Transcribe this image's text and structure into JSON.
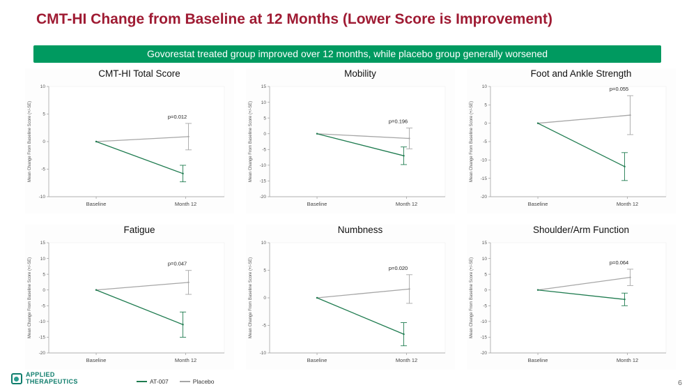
{
  "slide": {
    "title": "CMT-HI Change from Baseline at 12 Months  (Lower Score is Improvement)",
    "banner": "Govorestat treated group improved over 12 months, while placebo group generally worsened",
    "page_number": "6"
  },
  "logo": {
    "line1": "APPLIED",
    "line2": "THERAPEUTICS"
  },
  "colors": {
    "title_red": "#9f1b33",
    "banner_green": "#009a60",
    "at007_green": "#1e7b4f",
    "placebo_gray": "#a6a6a6",
    "logo_teal": "#0f7d6c"
  },
  "legend": {
    "position": "bottom-left",
    "items": [
      {
        "label": "AT-007",
        "color_key": "at007_green"
      },
      {
        "label": "Placebo",
        "color_key": "placebo_gray"
      }
    ]
  },
  "chart_data": [
    {
      "type": "line",
      "title": "CMT-HI Total Score",
      "p_value": "p=0.012",
      "x_categories": [
        "Baseline",
        "Month 12"
      ],
      "ylabel": "Mean Change From Baseline Score (+/-SE)",
      "ylim": [
        -10,
        10
      ],
      "yticks": [
        10,
        5,
        0,
        -5,
        -10
      ],
      "series": [
        {
          "name": "AT-007",
          "color_key": "at007_green",
          "values": [
            0,
            -5.8
          ],
          "se": [
            0,
            1.5
          ]
        },
        {
          "name": "Placebo",
          "color_key": "placebo_gray",
          "values": [
            0,
            0.9
          ],
          "se": [
            0,
            2.4
          ]
        }
      ]
    },
    {
      "type": "line",
      "title": "Mobility",
      "p_value": "p=0.196",
      "x_categories": [
        "Baseline",
        "Month 12"
      ],
      "ylabel": "Mean Change From Baseline Score (+/-SE)",
      "ylim": [
        -20,
        15
      ],
      "yticks": [
        15,
        10,
        5,
        0,
        -5,
        -10,
        -15,
        -20
      ],
      "series": [
        {
          "name": "AT-007",
          "color_key": "at007_green",
          "values": [
            0,
            -7.0
          ],
          "se": [
            0,
            2.8
          ]
        },
        {
          "name": "Placebo",
          "color_key": "placebo_gray",
          "values": [
            0,
            -1.5
          ],
          "se": [
            0,
            3.3
          ]
        }
      ]
    },
    {
      "type": "line",
      "title": "Foot and Ankle Strength",
      "p_value": "p=0.055",
      "x_categories": [
        "Baseline",
        "Month 12"
      ],
      "ylabel": "Mean Change From Baseline Score (+/-SE)",
      "ylim": [
        -20,
        10
      ],
      "yticks": [
        10,
        5,
        0,
        -5,
        -10,
        -15,
        -20
      ],
      "series": [
        {
          "name": "AT-007",
          "color_key": "at007_green",
          "values": [
            0,
            -11.8
          ],
          "se": [
            0,
            3.8
          ]
        },
        {
          "name": "Placebo",
          "color_key": "placebo_gray",
          "values": [
            0,
            2.2
          ],
          "se": [
            0,
            5.3
          ]
        }
      ]
    },
    {
      "type": "line",
      "title": "Fatigue",
      "p_value": "p=0.047",
      "x_categories": [
        "Baseline",
        "Month 12"
      ],
      "ylabel": "Mean Change From Baseline Score (+/-SE)",
      "ylim": [
        -20,
        15
      ],
      "yticks": [
        15,
        10,
        5,
        0,
        -5,
        -10,
        -15,
        -20
      ],
      "series": [
        {
          "name": "AT-007",
          "color_key": "at007_green",
          "values": [
            0,
            -11.0
          ],
          "se": [
            0,
            4.0
          ]
        },
        {
          "name": "Placebo",
          "color_key": "placebo_gray",
          "values": [
            0,
            2.4
          ],
          "se": [
            0,
            3.8
          ]
        }
      ]
    },
    {
      "type": "line",
      "title": "Numbness",
      "p_value": "p=0.020",
      "x_categories": [
        "Baseline",
        "Month 12"
      ],
      "ylabel": "Mean Change From Baseline Score (+/-SE)",
      "ylim": [
        -10,
        10
      ],
      "yticks": [
        10,
        5,
        0,
        -5,
        -10
      ],
      "series": [
        {
          "name": "AT-007",
          "color_key": "at007_green",
          "values": [
            0,
            -6.6
          ],
          "se": [
            0,
            2.1
          ]
        },
        {
          "name": "Placebo",
          "color_key": "placebo_gray",
          "values": [
            0,
            1.6
          ],
          "se": [
            0,
            2.6
          ]
        }
      ]
    },
    {
      "type": "line",
      "title": "Shoulder/Arm Function",
      "p_value": "p=0.064",
      "x_categories": [
        "Baseline",
        "Month 12"
      ],
      "ylabel": "Mean Change From Baseline Score (+/-SE)",
      "ylim": [
        -20,
        15
      ],
      "yticks": [
        15,
        10,
        5,
        0,
        -5,
        -10,
        -15,
        -20
      ],
      "series": [
        {
          "name": "AT-007",
          "color_key": "at007_green",
          "values": [
            0,
            -3.0
          ],
          "se": [
            0,
            2.0
          ]
        },
        {
          "name": "Placebo",
          "color_key": "placebo_gray",
          "values": [
            0,
            4.0
          ],
          "se": [
            0,
            2.6
          ]
        }
      ]
    }
  ]
}
